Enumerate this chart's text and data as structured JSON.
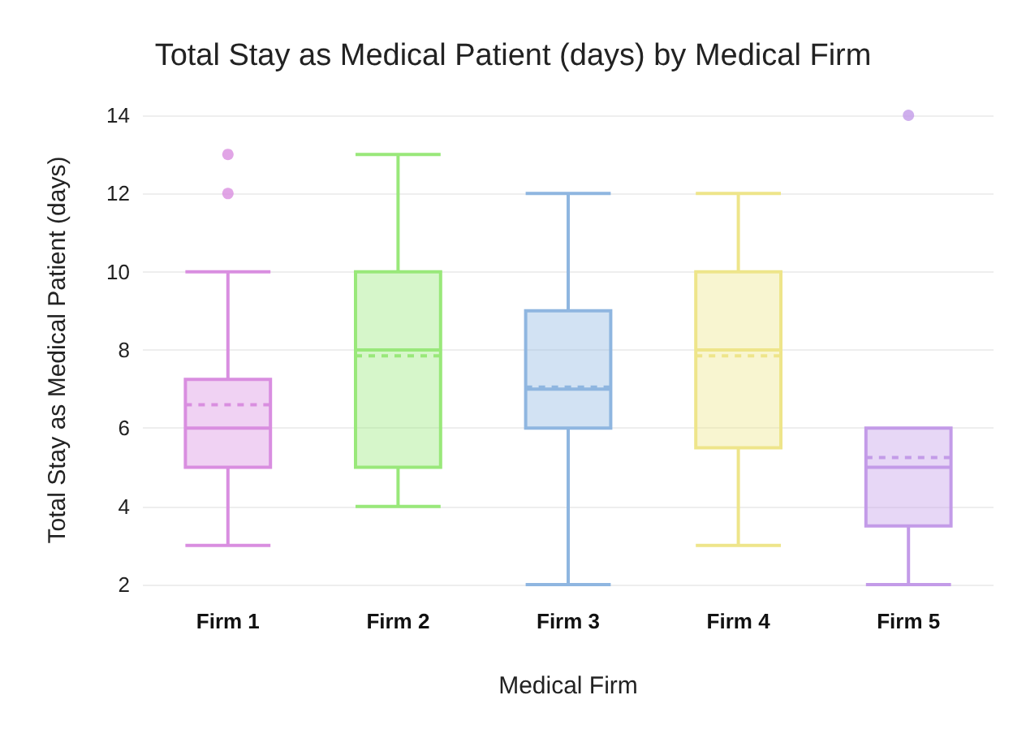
{
  "chart_data": {
    "type": "box",
    "title": "Total Stay as Medical Patient (days) by Medical Firm",
    "xlabel": "Medical Firm",
    "ylabel": "Total Stay as Medical Patient (days)",
    "categories": [
      "Firm 1",
      "Firm 2",
      "Firm 3",
      "Firm 4",
      "Firm 5"
    ],
    "colors": [
      "#d98ee0",
      "#99e87a",
      "#8fb6e0",
      "#eee58a",
      "#c39be8"
    ],
    "boxes": [
      {
        "low": 3,
        "q1": 5,
        "median": 6,
        "q3": 7.25,
        "high": 10,
        "mean": 6.6,
        "outliers": [
          12,
          13
        ]
      },
      {
        "low": 4,
        "q1": 5,
        "median": 8,
        "q3": 10,
        "high": 13,
        "mean": 7.85
      },
      {
        "low": 2,
        "q1": 6,
        "median": 7,
        "q3": 9,
        "high": 12,
        "mean": 7.05
      },
      {
        "low": 3,
        "q1": 5.5,
        "median": 8,
        "q3": 10,
        "high": 12,
        "mean": 7.85
      },
      {
        "low": 2,
        "q1": 3.5,
        "median": 5,
        "q3": 6,
        "high": 6,
        "mean": 5.25,
        "outliers": [
          14
        ]
      }
    ],
    "ylim": [
      2,
      14
    ],
    "yticks": [
      2,
      4,
      6,
      8,
      10,
      12,
      14
    ],
    "grid": "y"
  }
}
